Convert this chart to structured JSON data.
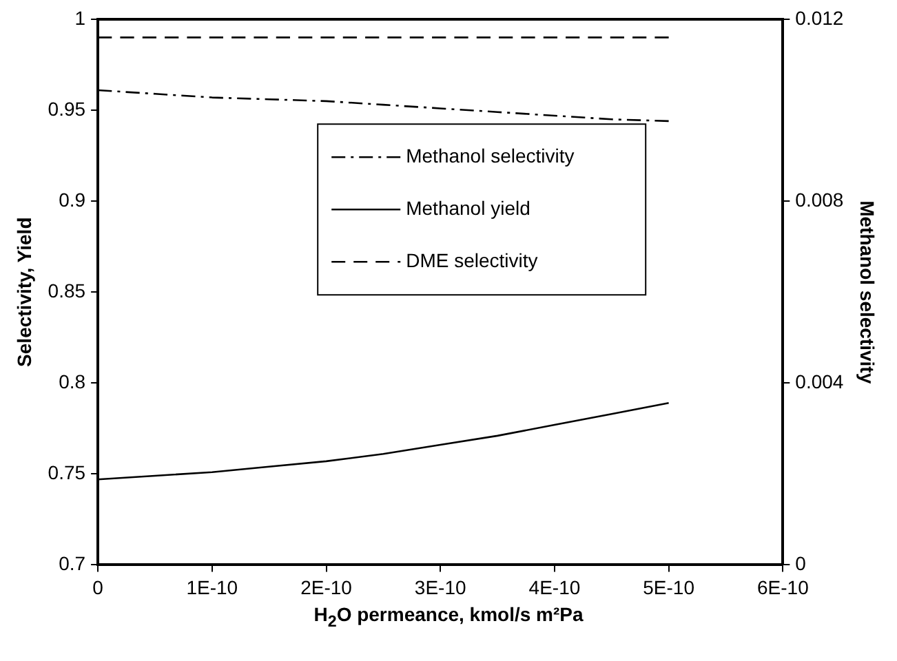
{
  "chart_data": {
    "type": "line",
    "xlabel": "H$_{2}$O permeance, kmol/s m²Pa",
    "ylabel": "Selectivity, Yield",
    "y2label": "Methanol selectivity",
    "x": [
      0,
      5e-11,
      1e-10,
      1.5e-10,
      2e-10,
      2.5e-10,
      3e-10,
      3.5e-10,
      4e-10,
      4.5e-10,
      5e-10
    ],
    "series": [
      {
        "name": "Methanol selectivity",
        "color": "#000000",
        "line_style": "dashdot",
        "values": [
          0.961,
          0.959,
          0.957,
          0.956,
          0.955,
          0.953,
          0.951,
          0.949,
          0.947,
          0.945,
          0.944
        ]
      },
      {
        "name": "Methanol yield",
        "color": "#000000",
        "line_style": "solid",
        "values": [
          0.747,
          0.749,
          0.751,
          0.754,
          0.757,
          0.761,
          0.766,
          0.771,
          0.777,
          0.783,
          0.789
        ]
      },
      {
        "name": "DME selectivity",
        "color": "#000000",
        "line_style": "dashed",
        "values": [
          0.99,
          0.99,
          0.99,
          0.99,
          0.99,
          0.99,
          0.99,
          0.99,
          0.99,
          0.99,
          0.99
        ]
      }
    ],
    "xlim": [
      0,
      6e-10
    ],
    "xticks": [
      0,
      {
        "value": 1e-10,
        "label": "1E-10"
      },
      {
        "value": 2e-10,
        "label": "2E-10"
      },
      {
        "value": 3e-10,
        "label": "3E-10"
      },
      {
        "value": 4e-10,
        "label": "4E-10"
      },
      {
        "value": 5e-10,
        "label": "5E-10"
      },
      {
        "value": 6e-10,
        "label": "6E-10"
      }
    ],
    "ylim": [
      0.7,
      1
    ],
    "yticks": [
      0.7,
      0.75,
      0.8,
      0.85,
      0.9,
      0.95,
      1
    ],
    "y2lim": [
      0,
      0.012
    ],
    "y2ticks": [
      0,
      0.004,
      0.008,
      0.012
    ],
    "grid": false,
    "legend": "center",
    "marker": "none"
  }
}
